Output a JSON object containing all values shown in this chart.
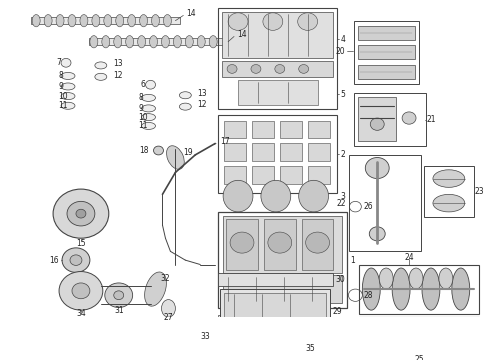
{
  "bg": "#ffffff",
  "lc": "#444444",
  "tc": "#222222",
  "fs": 5.5,
  "figsize": [
    4.9,
    3.6
  ],
  "dpi": 100
}
